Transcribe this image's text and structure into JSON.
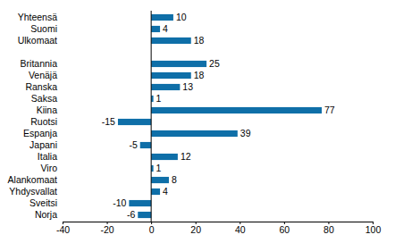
{
  "chart_data": {
    "type": "bar",
    "orientation": "horizontal",
    "categories": [
      "Yhteensä",
      "Suomi",
      "Ulkomaat",
      null,
      "Britannia",
      "Venäjä",
      "Ranska",
      "Saksa",
      "Kiina",
      "Ruotsi",
      "Espanja",
      "Japani",
      "Italia",
      "Viro",
      "Alankomaat",
      "Yhdysvallat",
      "Sveitsi",
      "Norja"
    ],
    "values": [
      10,
      4,
      18,
      null,
      25,
      18,
      13,
      1,
      77,
      -15,
      39,
      -5,
      12,
      1,
      8,
      4,
      -10,
      -6
    ],
    "color": "#0f6fa8",
    "xlim": [
      -40,
      100
    ],
    "xticks": [
      -40,
      -20,
      0,
      20,
      40,
      60,
      80,
      100
    ],
    "grid": false,
    "data_labels": true
  }
}
